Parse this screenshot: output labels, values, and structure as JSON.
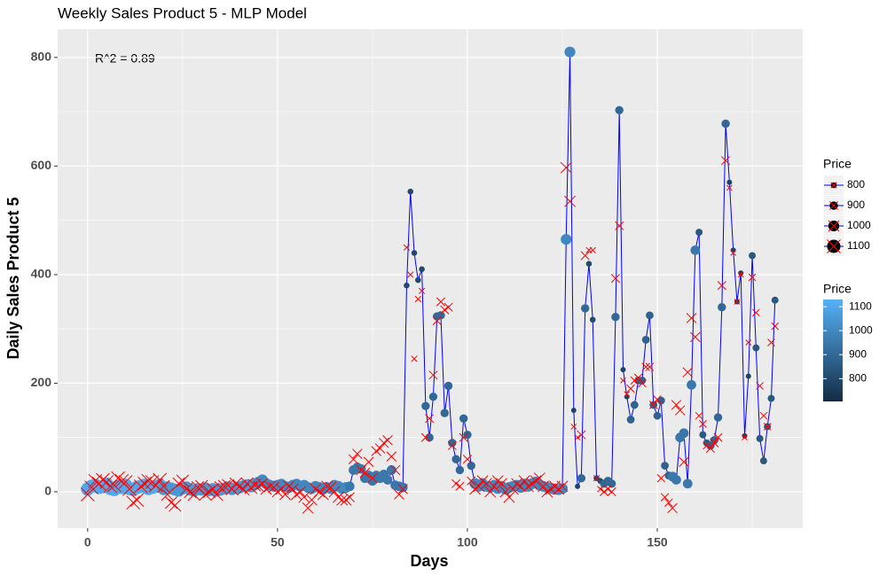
{
  "chart_data": {
    "type": "line",
    "title": "Weekly Sales Product 5 - MLP Model",
    "x_label": "Days",
    "y_label": "Daily Sales Product 5",
    "annotation": "R^2 = 0.89",
    "x": [
      0,
      1,
      2,
      3,
      4,
      5,
      6,
      7,
      8,
      9,
      10,
      11,
      12,
      13,
      14,
      15,
      16,
      17,
      18,
      19,
      20,
      21,
      22,
      23,
      24,
      25,
      26,
      27,
      28,
      29,
      30,
      31,
      32,
      33,
      34,
      35,
      36,
      37,
      38,
      39,
      40,
      41,
      42,
      43,
      44,
      45,
      46,
      47,
      48,
      49,
      50,
      51,
      52,
      53,
      54,
      55,
      56,
      57,
      58,
      59,
      60,
      61,
      62,
      63,
      64,
      65,
      66,
      67,
      68,
      69,
      70,
      71,
      72,
      73,
      74,
      75,
      76,
      77,
      78,
      79,
      80,
      81,
      82,
      83,
      84,
      85,
      86,
      87,
      88,
      89,
      90,
      91,
      92,
      93,
      94,
      95,
      96,
      97,
      98,
      99,
      100,
      101,
      102,
      103,
      104,
      105,
      106,
      107,
      108,
      109,
      110,
      111,
      112,
      113,
      114,
      115,
      116,
      117,
      118,
      119,
      120,
      121,
      122,
      123,
      124,
      125,
      126,
      127,
      128,
      129,
      130,
      131,
      132,
      133,
      134,
      135,
      136,
      137,
      138,
      139,
      140,
      141,
      142,
      143,
      144,
      145,
      146,
      147,
      148,
      149,
      150,
      151,
      152,
      153,
      154,
      155,
      156,
      157,
      158,
      159,
      160,
      161,
      162,
      163,
      164,
      165,
      166,
      167,
      168,
      169,
      170,
      171,
      172,
      173,
      174,
      175,
      176,
      177,
      178,
      179,
      180,
      181
    ],
    "series": [
      {
        "color": "#0000FF",
        "point_style": "circle",
        "values": [
          5,
          10,
          12,
          8,
          10,
          14,
          6,
          4,
          10,
          8,
          12,
          6,
          4,
          8,
          10,
          12,
          6,
          8,
          10,
          12,
          5,
          8,
          6,
          4,
          2,
          6,
          8,
          4,
          2,
          5,
          4,
          6,
          3,
          5,
          2,
          4,
          6,
          8,
          5,
          7,
          8,
          10,
          12,
          10,
          14,
          18,
          22,
          15,
          12,
          10,
          12,
          14,
          10,
          8,
          12,
          14,
          10,
          12,
          8,
          6,
          10,
          8,
          5,
          8,
          6,
          12,
          10,
          6,
          8,
          10,
          40,
          45,
          42,
          25,
          30,
          20,
          30,
          25,
          32,
          22,
          40,
          12,
          10,
          8,
          380,
          553,
          440,
          390,
          410,
          158,
          100,
          175,
          323,
          325,
          145,
          195,
          90,
          60,
          40,
          135,
          105,
          48,
          15,
          10,
          15,
          10,
          8,
          12,
          6,
          10,
          5,
          8,
          10,
          12,
          8,
          14,
          10,
          15,
          18,
          12,
          10,
          8,
          6,
          5,
          4,
          6,
          465,
          810,
          150,
          10,
          25,
          338,
          420,
          317,
          25,
          20,
          15,
          20,
          15,
          322,
          703,
          225,
          175,
          133,
          160,
          205,
          205,
          280,
          325,
          160,
          140,
          168,
          48,
          30,
          28,
          22,
          100,
          108,
          15,
          197,
          445,
          478,
          105,
          90,
          85,
          95,
          137,
          340,
          678,
          570,
          445,
          350,
          403,
          103,
          213,
          435,
          265,
          98,
          57,
          120,
          172,
          353
        ]
      },
      {
        "color": "#FF0000",
        "point_style": "cross",
        "values": [
          -5,
          8,
          20,
          15,
          22,
          18,
          10,
          12,
          25,
          20,
          18,
          5,
          -20,
          -15,
          10,
          15,
          20,
          18,
          12,
          22,
          10,
          -5,
          -20,
          -25,
          15,
          20,
          5,
          0,
          -5,
          8,
          10,
          -5,
          0,
          5,
          -5,
          8,
          10,
          12,
          5,
          15,
          10,
          5,
          15,
          8,
          12,
          10,
          15,
          5,
          10,
          8,
          0,
          5,
          -5,
          10,
          5,
          -5,
          0,
          -10,
          -30,
          -15,
          5,
          0,
          -5,
          10,
          8,
          0,
          -10,
          -15,
          -15,
          -10,
          60,
          70,
          40,
          35,
          55,
          25,
          75,
          80,
          90,
          95,
          65,
          40,
          -5,
          5,
          450,
          400,
          245,
          355,
          370,
          100,
          135,
          215,
          315,
          350,
          335,
          340,
          85,
          15,
          10,
          100,
          60,
          20,
          5,
          10,
          20,
          15,
          0,
          10,
          20,
          15,
          0,
          -10,
          5,
          15,
          10,
          20,
          10,
          15,
          20,
          25,
          10,
          0,
          5,
          10,
          5,
          10,
          597,
          535,
          120,
          100,
          105,
          435,
          445,
          445,
          25,
          5,
          0,
          5,
          0,
          393,
          490,
          205,
          180,
          190,
          205,
          210,
          200,
          230,
          230,
          160,
          170,
          25,
          -10,
          -20,
          -30,
          160,
          150,
          55,
          220,
          320,
          285,
          140,
          125,
          85,
          80,
          90,
          100,
          380,
          610,
          560,
          440,
          350,
          400,
          100,
          275,
          395,
          330,
          195,
          140,
          120,
          275,
          305
        ]
      }
    ],
    "price": [
      1100,
      1100,
      1100,
      1100,
      1100,
      1100,
      1100,
      1100,
      1100,
      1100,
      1100,
      1100,
      1100,
      1100,
      1100,
      1100,
      1100,
      1100,
      1100,
      1100,
      1050,
      1050,
      1050,
      1050,
      1050,
      1050,
      1050,
      1050,
      1050,
      1050,
      1050,
      1050,
      1050,
      1050,
      1050,
      1050,
      1050,
      1050,
      1050,
      1050,
      1050,
      1050,
      1050,
      1050,
      1050,
      1000,
      1000,
      1000,
      1000,
      1000,
      1000,
      1000,
      1000,
      1000,
      1000,
      1000,
      1000,
      1000,
      1000,
      1000,
      1000,
      1000,
      1000,
      1000,
      1000,
      1000,
      1000,
      1000,
      1000,
      950,
      950,
      950,
      950,
      950,
      950,
      950,
      950,
      950,
      950,
      950,
      950,
      950,
      950,
      950,
      800,
      800,
      800,
      800,
      800,
      900,
      900,
      900,
      900,
      900,
      900,
      900,
      900,
      900,
      900,
      900,
      900,
      900,
      1000,
      1000,
      1000,
      1000,
      1000,
      1000,
      1000,
      1000,
      1000,
      1000,
      1000,
      1000,
      1000,
      1000,
      1000,
      1000,
      1000,
      1000,
      1000,
      1000,
      1000,
      1000,
      1000,
      1000,
      1000,
      1000,
      780,
      780,
      900,
      900,
      800,
      800,
      800,
      800,
      900,
      900,
      900,
      900,
      900,
      780,
      780,
      880,
      880,
      880,
      880,
      880,
      880,
      880,
      880,
      880,
      880,
      880,
      950,
      950,
      950,
      950,
      950,
      950,
      950,
      850,
      850,
      850,
      900,
      900,
      900,
      900,
      900,
      780,
      780,
      780,
      780,
      780,
      780,
      850,
      850,
      850,
      850,
      850,
      850,
      850,
      850,
      850
    ],
    "xlim": [
      -7.9,
      188.3
    ],
    "ylim": [
      -67,
      852
    ],
    "xticks": [
      0,
      50,
      100,
      150
    ],
    "yticks": [
      0,
      200,
      400,
      600,
      800
    ],
    "grid": true,
    "size_legend": {
      "title": "Price",
      "values": [
        800,
        900,
        1000,
        1100
      ],
      "range": [
        780,
        1100
      ]
    },
    "color_legend": {
      "title": "Price",
      "ticks": [
        800,
        900,
        1000,
        1100
      ],
      "lim": [
        705,
        1130
      ],
      "colors": [
        "#132B43",
        "#56B1F7"
      ]
    }
  }
}
